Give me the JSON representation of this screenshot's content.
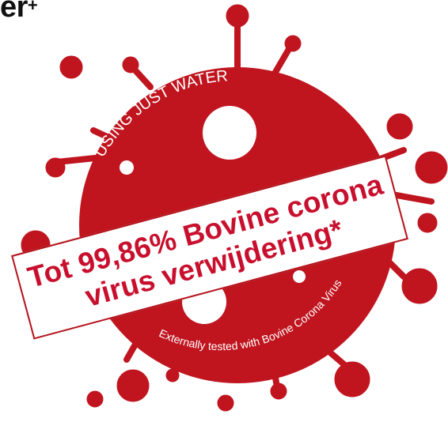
{
  "heading": {
    "text": "er",
    "superscript": "+"
  },
  "badge": {
    "top_arc_text": "USING JUST WATER",
    "bottom_arc_text": "Externally tested with Bovine Corona Virus",
    "color": "#c0151f"
  },
  "banner": {
    "line1": "Tot 99,86% Bovine corona",
    "line2": "virus verwijdering*",
    "text_color": "#c8102e"
  }
}
